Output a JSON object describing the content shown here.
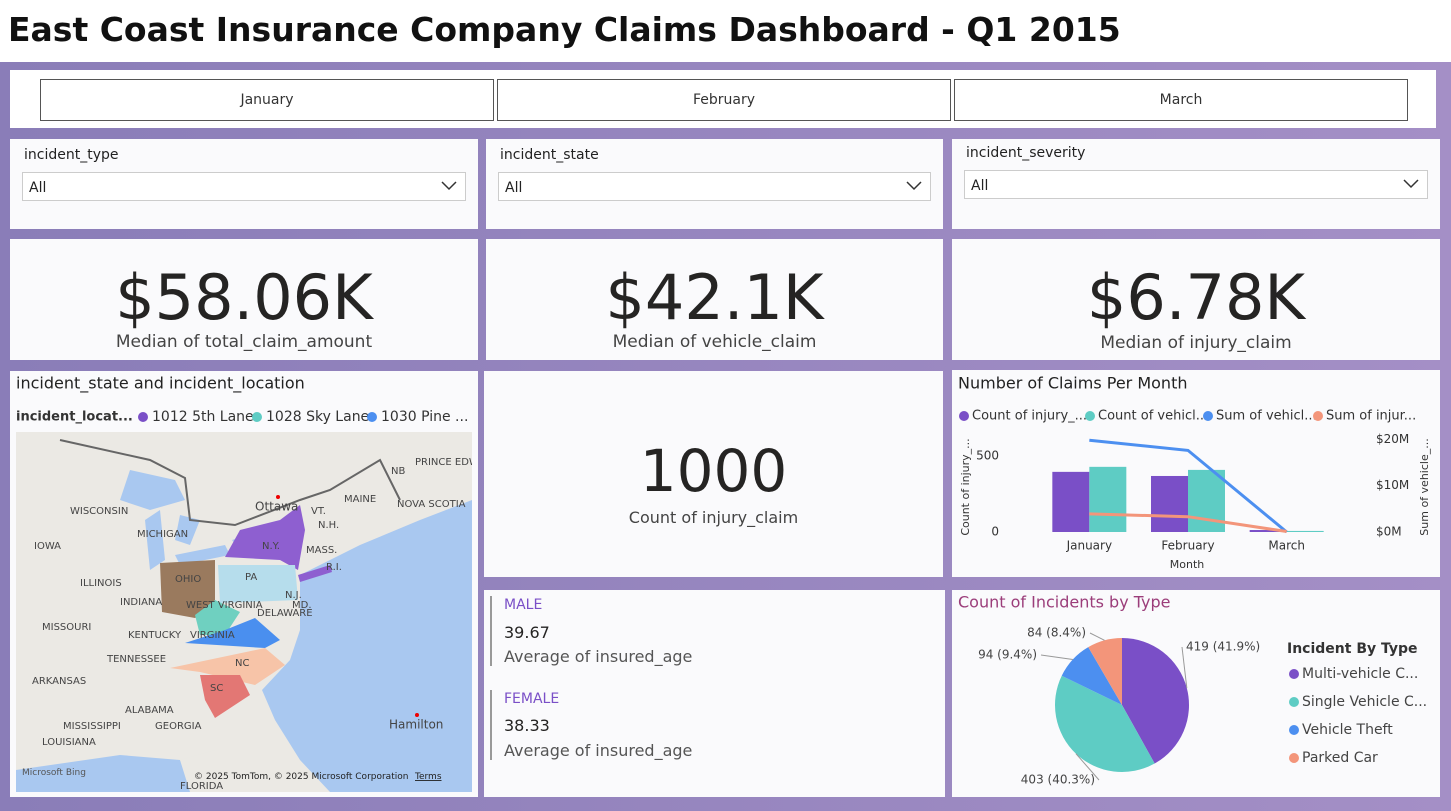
{
  "header": {
    "title": "East Coast Insurance Company Claims Dashboard - Q1 2015"
  },
  "months": [
    "January",
    "February",
    "March"
  ],
  "filters": [
    {
      "label": "incident_type",
      "value": "All"
    },
    {
      "label": "incident_state",
      "value": "All"
    },
    {
      "label": "incident_severity",
      "value": "All"
    }
  ],
  "kpis": [
    {
      "value": "$58.06K",
      "label": "Median of total_claim_amount"
    },
    {
      "value": "$42.1K",
      "label": "Median of vehicle_claim"
    },
    {
      "value": "$6.78K",
      "label": "Median of injury_claim"
    }
  ],
  "map": {
    "title": "incident_state and incident_location",
    "legend_title": "incident_locat...",
    "legend": [
      {
        "name": "1012 5th Lane",
        "color": "#7A4FC7"
      },
      {
        "name": "1028 Sky Lane",
        "color": "#5ECCC4"
      },
      {
        "name": "1030 Pine ...",
        "color": "#4C8FF0"
      }
    ],
    "labels": [
      "Ottawa",
      "WISCONSIN",
      "MICHIGAN",
      "IOWA",
      "ILLINOIS",
      "INDIANA",
      "OHIO",
      "MISSOURI",
      "KENTUCKY",
      "TENNESSEE",
      "ARKANSAS",
      "MISSISSIPPI",
      "ALABAMA",
      "GEORGIA",
      "LOUISIANA",
      "FLORIDA",
      "N.Y.",
      "PA",
      "VT.",
      "N.H.",
      "MAINE",
      "MASS.",
      "R.I.",
      "N.J.",
      "MD.",
      "DELAWARE",
      "WEST VIRGINIA",
      "VIRGINIA",
      "NC",
      "SC",
      "NB",
      "PRINCE EDWARD ISLAND",
      "NOVA SCOTIA",
      "Hamilton"
    ],
    "brand": "Microsoft Bing",
    "copyright": "© 2025 TomTom, © 2025 Microsoft Corporation",
    "terms": "Terms"
  },
  "count_card": {
    "value": "1000",
    "label": "Count of injury_claim"
  },
  "gender_cards": [
    {
      "title": "MALE",
      "value": "39.67",
      "label": "Average of insured_age"
    },
    {
      "title": "FEMALE",
      "value": "38.33",
      "label": "Average of insured_age"
    }
  ],
  "claims_chart": {
    "type": "bar",
    "title": "Number of Claims Per Month",
    "categories": [
      "January",
      "February",
      "March"
    ],
    "x_label": "Month",
    "y_label": "Count of injury_...",
    "y2_label": "Sum of vehicle_...",
    "ylim": [
      0,
      670
    ],
    "yticks": [
      0,
      500
    ],
    "y2lim": [
      0,
      22000000
    ],
    "y2ticks": [
      {
        "value": 0,
        "label": "$0M"
      },
      {
        "value": 10000000,
        "label": "$10M"
      },
      {
        "value": 20000000,
        "label": "$20M"
      }
    ],
    "series": [
      {
        "name": "Count of injury_...",
        "color": "#7A4FC7",
        "type": "bar",
        "values": [
          395,
          368,
          13
        ]
      },
      {
        "name": "Count of vehicl...",
        "color": "#5ECCC4",
        "type": "bar",
        "values": [
          428,
          408,
          7
        ]
      },
      {
        "name": "Sum of vehicl...",
        "color": "#4C8FF0",
        "type": "line",
        "axis": "y2",
        "values": [
          19800000,
          17600000,
          0
        ]
      },
      {
        "name": "Sum of injur...",
        "color": "#F3957A",
        "type": "line",
        "axis": "y2",
        "values": [
          3900000,
          3300000,
          100000
        ]
      }
    ]
  },
  "pie_chart": {
    "type": "pie",
    "title": "Count of Incidents by Type",
    "legend_title": "Incident By Type",
    "categories": [
      "Multi-vehicle C...",
      "Single Vehicle C...",
      "Vehicle Theft",
      "Parked Car"
    ],
    "values": [
      419,
      403,
      94,
      84
    ],
    "value_labels": [
      "419 (41.9%)",
      "403 (40.3%)",
      "94 (9.4%)",
      "84 (8.4%)"
    ],
    "colors": [
      "#7A4FC7",
      "#5ECCC4",
      "#4C8FF0",
      "#F3957A"
    ]
  }
}
